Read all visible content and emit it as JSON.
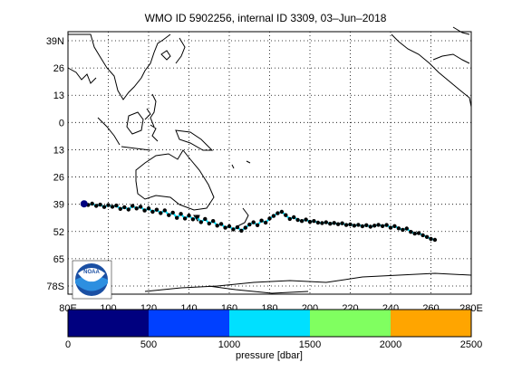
{
  "title": "WMO ID 5902256, internal ID 3309, 03–Jun–2018",
  "map": {
    "lat_ticks": [
      {
        "value": 39,
        "label": "39N"
      },
      {
        "value": 26,
        "label": "26"
      },
      {
        "value": 13,
        "label": "13"
      },
      {
        "value": 0,
        "label": "0"
      },
      {
        "value": -13,
        "label": "13"
      },
      {
        "value": -26,
        "label": "26"
      },
      {
        "value": -39,
        "label": "39"
      },
      {
        "value": -52,
        "label": "52"
      },
      {
        "value": -65,
        "label": "65"
      },
      {
        "value": -78,
        "label": "78S"
      }
    ],
    "lon_ticks": [
      {
        "value": 80,
        "label": "80E"
      },
      {
        "value": 100,
        "label": "100"
      },
      {
        "value": 120,
        "label": "120"
      },
      {
        "value": 140,
        "label": "140"
      },
      {
        "value": 160,
        "label": "160"
      },
      {
        "value": 180,
        "label": "180"
      },
      {
        "value": 200,
        "label": "200"
      },
      {
        "value": 220,
        "label": "220"
      },
      {
        "value": 240,
        "label": "240"
      },
      {
        "value": 260,
        "label": "260"
      },
      {
        "value": 280,
        "label": "280E"
      }
    ],
    "lon_range": [
      80,
      280
    ],
    "lat_range": [
      -85,
      45
    ],
    "grid": "dotted",
    "logo_text": "NOAA"
  },
  "trajectory": {
    "pressure_dbar": 0,
    "points": [
      [
        88,
        -38.8
      ],
      [
        90,
        -39.3
      ],
      [
        92,
        -38.7
      ],
      [
        94,
        -39.8
      ],
      [
        96,
        -39.2
      ],
      [
        98,
        -40.3
      ],
      [
        100,
        -39.4
      ],
      [
        102,
        -40.2
      ],
      [
        104,
        -39.6
      ],
      [
        106,
        -41.2
      ],
      [
        108,
        -40.4
      ],
      [
        110,
        -41.5
      ],
      [
        112,
        -39.8
      ],
      [
        114,
        -41.0
      ],
      [
        116,
        -40.2
      ],
      [
        118,
        -42.0
      ],
      [
        120,
        -41.0
      ],
      [
        122,
        -42.6
      ],
      [
        124,
        -41.6
      ],
      [
        126,
        -43.2
      ],
      [
        128,
        -41.9
      ],
      [
        130,
        -44.2
      ],
      [
        132,
        -43.0
      ],
      [
        134,
        -45.5
      ],
      [
        136,
        -43.6
      ],
      [
        138,
        -45.8
      ],
      [
        140,
        -44.4
      ],
      [
        142,
        -46.2
      ],
      [
        144,
        -45.0
      ],
      [
        146,
        -47.5
      ],
      [
        148,
        -46.0
      ],
      [
        150,
        -48.2
      ],
      [
        152,
        -47.0
      ],
      [
        154,
        -49.2
      ],
      [
        156,
        -48.4
      ],
      [
        158,
        -50.2
      ],
      [
        160,
        -49.5
      ],
      [
        162,
        -51.0
      ],
      [
        164,
        -50.0
      ],
      [
        166,
        -51.6
      ],
      [
        168,
        -50.2
      ],
      [
        170,
        -48.7
      ],
      [
        172,
        -47.6
      ],
      [
        174,
        -49.0
      ],
      [
        176,
        -46.8
      ],
      [
        178,
        -47.8
      ],
      [
        180,
        -45.8
      ],
      [
        182,
        -44.6
      ],
      [
        184,
        -43.3
      ],
      [
        186,
        -42.6
      ],
      [
        188,
        -44.2
      ],
      [
        190,
        -46.0
      ],
      [
        192,
        -45.2
      ],
      [
        194,
        -46.5
      ],
      [
        196,
        -47.0
      ],
      [
        198,
        -46.3
      ],
      [
        200,
        -47.4
      ],
      [
        202,
        -47.0
      ],
      [
        204,
        -47.8
      ],
      [
        206,
        -48.0
      ],
      [
        208,
        -47.6
      ],
      [
        210,
        -48.3
      ],
      [
        212,
        -47.9
      ],
      [
        214,
        -48.5
      ],
      [
        216,
        -48.1
      ],
      [
        218,
        -48.9
      ],
      [
        220,
        -48.6
      ],
      [
        222,
        -49.2
      ],
      [
        224,
        -48.8
      ],
      [
        226,
        -49.5
      ],
      [
        228,
        -49.0
      ],
      [
        230,
        -49.7
      ],
      [
        232,
        -49.2
      ],
      [
        234,
        -48.8
      ],
      [
        236,
        -49.4
      ],
      [
        238,
        -48.9
      ],
      [
        240,
        -50.2
      ],
      [
        242,
        -49.4
      ],
      [
        244,
        -50.5
      ],
      [
        246,
        -51.2
      ],
      [
        248,
        -50.6
      ],
      [
        250,
        -52.2
      ],
      [
        252,
        -53.0
      ],
      [
        254,
        -52.8
      ],
      [
        256,
        -53.8
      ],
      [
        258,
        -54.6
      ],
      [
        260,
        -55.5
      ],
      [
        262,
        -56.0
      ]
    ]
  },
  "colorbar": {
    "label": "pressure [dbar]",
    "bands": [
      {
        "from": 0,
        "to": 500,
        "color": "#00007f"
      },
      {
        "from": 500,
        "to": 1000,
        "color": "#0040ff"
      },
      {
        "from": 1000,
        "to": 1500,
        "color": "#00e0ff"
      },
      {
        "from": 1500,
        "to": 2000,
        "color": "#80ff60"
      },
      {
        "from": 2000,
        "to": 2500,
        "color": "#ffa500"
      }
    ],
    "ticks": [
      "0",
      "500",
      "1000",
      "1500",
      "2000",
      "2500"
    ]
  }
}
